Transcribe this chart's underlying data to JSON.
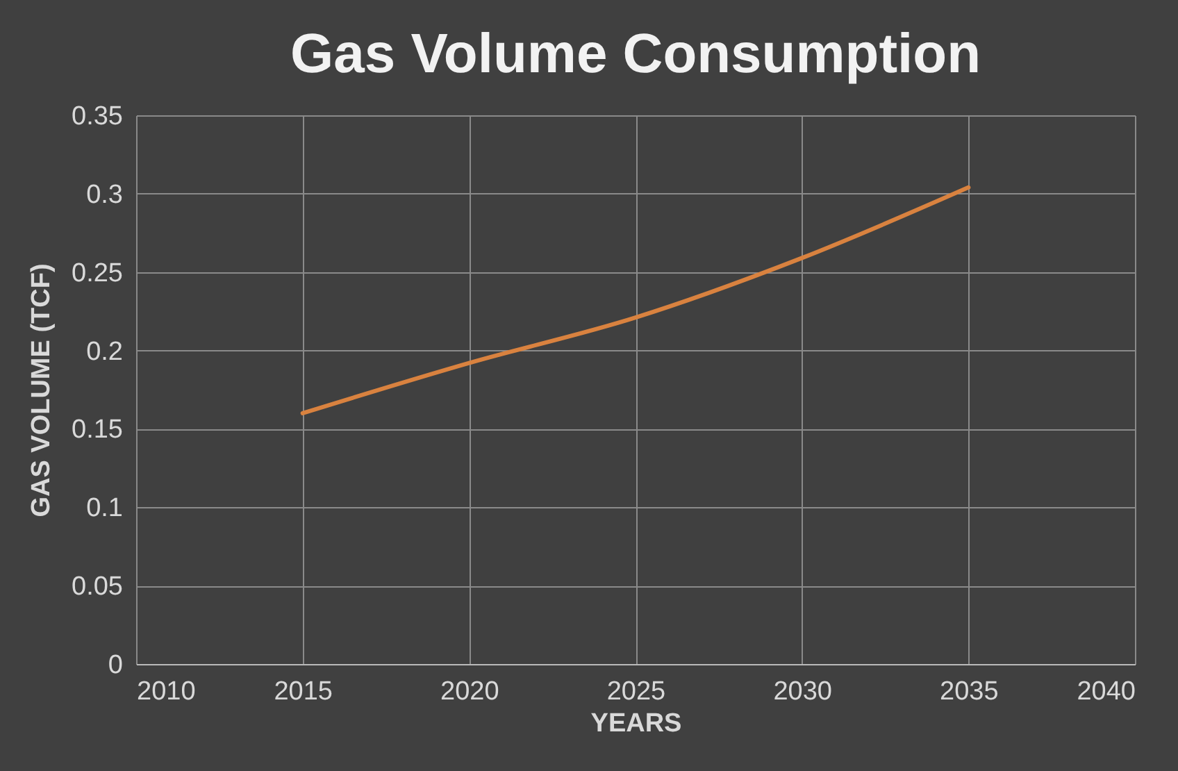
{
  "chart_data": {
    "type": "line",
    "title": "Gas Volume Consumption",
    "xlabel": "YEARS",
    "ylabel": "GAS VOLUME (TCF)",
    "x": [
      2015,
      2020,
      2025,
      2030,
      2035
    ],
    "series": [
      {
        "color": "#d9823f",
        "values": [
          0.16,
          0.192,
          0.221,
          0.259,
          0.304
        ]
      }
    ],
    "xlim": [
      2010,
      2040
    ],
    "xticks": [
      2010,
      2015,
      2020,
      2025,
      2030,
      2035,
      2040
    ],
    "ylim": [
      0,
      0.35
    ],
    "yticks": [
      0,
      0.05,
      0.1,
      0.15,
      0.2,
      0.25,
      0.3,
      0.35
    ],
    "grid": true,
    "marker": "none",
    "line_style": "solid"
  }
}
